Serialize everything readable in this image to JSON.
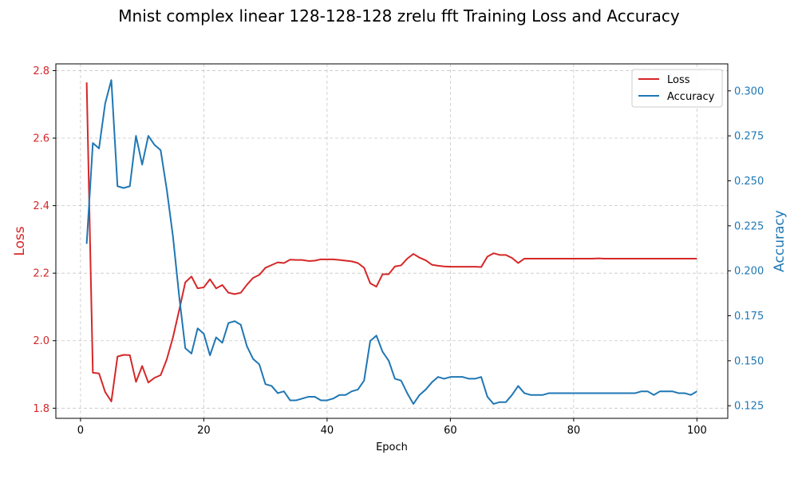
{
  "chart_data": {
    "type": "line",
    "title": "Mnist complex linear 128-128-128 zrelu fft Training Loss and Accuracy",
    "xlabel": "Epoch",
    "ylabel_left": "Loss",
    "ylabel_right": "Accuracy",
    "xlim": [
      -4,
      105
    ],
    "ylim_left": [
      1.77,
      2.82
    ],
    "ylim_right": [
      0.118,
      0.315
    ],
    "x_ticks": [
      0,
      20,
      40,
      60,
      80,
      100
    ],
    "y_left_ticks": [
      "1.8",
      "2.0",
      "2.2",
      "2.4",
      "2.6",
      "2.8"
    ],
    "y_right_ticks": [
      "0.125",
      "0.150",
      "0.175",
      "0.200",
      "0.225",
      "0.250",
      "0.275",
      "0.300"
    ],
    "grid": true,
    "legend_position": "top-right",
    "colors": {
      "loss": "#d62728",
      "accuracy": "#1f77b4"
    },
    "x": [
      1,
      2,
      3,
      4,
      5,
      6,
      7,
      8,
      9,
      10,
      11,
      12,
      13,
      14,
      15,
      16,
      17,
      18,
      19,
      20,
      21,
      22,
      23,
      24,
      25,
      26,
      27,
      28,
      29,
      30,
      31,
      32,
      33,
      34,
      35,
      36,
      37,
      38,
      39,
      40,
      41,
      42,
      43,
      44,
      45,
      46,
      47,
      48,
      49,
      50,
      51,
      52,
      53,
      54,
      55,
      56,
      57,
      58,
      59,
      60,
      61,
      62,
      63,
      64,
      65,
      66,
      67,
      68,
      69,
      70,
      71,
      72,
      73,
      74,
      75,
      76,
      77,
      78,
      79,
      80,
      81,
      82,
      83,
      84,
      85,
      86,
      87,
      88,
      89,
      90,
      91,
      92,
      93,
      94,
      95,
      96,
      97,
      98,
      99,
      100
    ],
    "series": [
      {
        "name": "Loss",
        "axis": "left",
        "values": [
          2.765,
          1.905,
          1.903,
          1.848,
          1.82,
          1.953,
          1.958,
          1.957,
          1.878,
          1.925,
          1.876,
          1.89,
          1.898,
          1.945,
          2.01,
          2.09,
          2.173,
          2.19,
          2.155,
          2.158,
          2.182,
          2.155,
          2.165,
          2.142,
          2.138,
          2.142,
          2.166,
          2.186,
          2.195,
          2.216,
          2.224,
          2.232,
          2.23,
          2.24,
          2.239,
          2.239,
          2.236,
          2.237,
          2.241,
          2.241,
          2.241,
          2.239,
          2.237,
          2.235,
          2.23,
          2.216,
          2.17,
          2.16,
          2.197,
          2.197,
          2.22,
          2.223,
          2.243,
          2.257,
          2.246,
          2.238,
          2.225,
          2.222,
          2.22,
          2.219,
          2.219,
          2.219,
          2.219,
          2.219,
          2.218,
          2.249,
          2.259,
          2.254,
          2.254,
          2.245,
          2.23,
          2.243,
          2.243,
          2.243,
          2.243,
          2.243,
          2.243,
          2.243,
          2.243,
          2.243,
          2.243,
          2.243,
          2.243,
          2.244,
          2.243,
          2.243,
          2.243,
          2.243,
          2.243,
          2.243,
          2.243,
          2.243,
          2.243,
          2.243,
          2.243,
          2.243,
          2.243,
          2.243,
          2.243,
          2.243
        ]
      },
      {
        "name": "Accuracy",
        "axis": "right",
        "values": [
          0.215,
          0.271,
          0.268,
          0.293,
          0.306,
          0.247,
          0.246,
          0.247,
          0.275,
          0.259,
          0.275,
          0.27,
          0.267,
          0.245,
          0.219,
          0.186,
          0.157,
          0.154,
          0.168,
          0.165,
          0.153,
          0.163,
          0.16,
          0.171,
          0.172,
          0.17,
          0.158,
          0.151,
          0.148,
          0.137,
          0.136,
          0.132,
          0.133,
          0.128,
          0.128,
          0.129,
          0.13,
          0.13,
          0.128,
          0.128,
          0.129,
          0.131,
          0.131,
          0.133,
          0.134,
          0.139,
          0.161,
          0.164,
          0.155,
          0.15,
          0.14,
          0.139,
          0.132,
          0.126,
          0.131,
          0.134,
          0.138,
          0.141,
          0.14,
          0.141,
          0.141,
          0.141,
          0.14,
          0.14,
          0.141,
          0.13,
          0.126,
          0.127,
          0.127,
          0.131,
          0.136,
          0.132,
          0.131,
          0.131,
          0.131,
          0.132,
          0.132,
          0.132,
          0.132,
          0.132,
          0.132,
          0.132,
          0.132,
          0.132,
          0.132,
          0.132,
          0.132,
          0.132,
          0.132,
          0.132,
          0.133,
          0.133,
          0.131,
          0.133,
          0.133,
          0.133,
          0.132,
          0.132,
          0.131,
          0.133
        ]
      }
    ]
  }
}
